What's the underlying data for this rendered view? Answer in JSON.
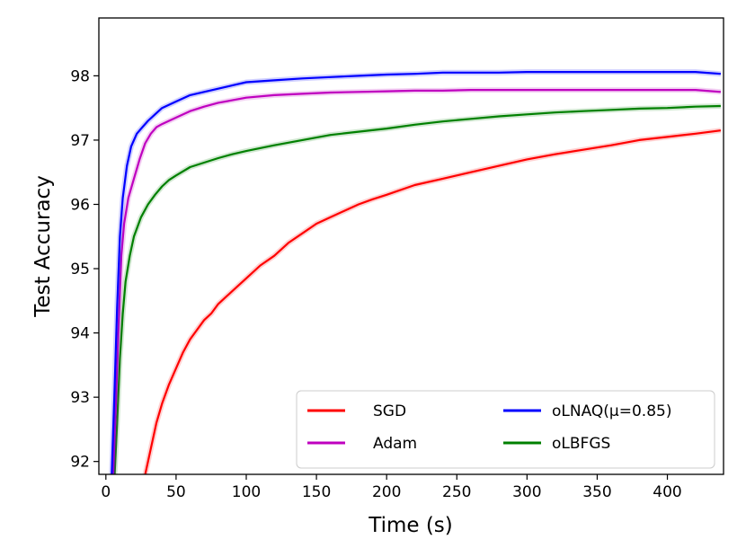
{
  "chart_data": {
    "type": "line",
    "xlabel": "Time (s)",
    "ylabel": "Test Accuracy",
    "xlim": [
      -5,
      440
    ],
    "ylim": [
      91.8,
      98.9
    ],
    "xticks": [
      0,
      50,
      100,
      150,
      200,
      250,
      300,
      350,
      400
    ],
    "yticks": [
      92,
      93,
      94,
      95,
      96,
      97,
      98
    ],
    "grid": false,
    "legend": {
      "placement": "lower-right",
      "columns": 2
    },
    "series": [
      {
        "name": "SGD",
        "color": "#ff0000",
        "x": [
          27,
          32,
          36,
          40,
          45,
          50,
          55,
          60,
          65,
          70,
          75,
          80,
          85,
          90,
          95,
          100,
          110,
          120,
          130,
          140,
          150,
          160,
          170,
          180,
          190,
          200,
          220,
          240,
          260,
          280,
          300,
          320,
          340,
          360,
          380,
          400,
          420,
          438
        ],
        "y": [
          91.7,
          92.2,
          92.6,
          92.9,
          93.2,
          93.45,
          93.7,
          93.9,
          94.05,
          94.2,
          94.3,
          94.45,
          94.55,
          94.65,
          94.75,
          94.85,
          95.05,
          95.2,
          95.4,
          95.55,
          95.7,
          95.8,
          95.9,
          96.0,
          96.08,
          96.15,
          96.3,
          96.4,
          96.5,
          96.6,
          96.7,
          96.78,
          96.85,
          96.92,
          97.0,
          97.05,
          97.1,
          97.15
        ]
      },
      {
        "name": "oLNAQ(μ=0.85)",
        "color": "#0000ff",
        "x": [
          4,
          6,
          8,
          10,
          12,
          15,
          18,
          22,
          26,
          30,
          35,
          40,
          45,
          50,
          60,
          70,
          80,
          90,
          100,
          120,
          140,
          160,
          180,
          200,
          220,
          240,
          260,
          280,
          300,
          320,
          340,
          360,
          380,
          400,
          420,
          438
        ],
        "y": [
          91.7,
          93.0,
          94.4,
          95.5,
          96.1,
          96.6,
          96.9,
          97.1,
          97.2,
          97.3,
          97.4,
          97.5,
          97.55,
          97.6,
          97.7,
          97.75,
          97.8,
          97.85,
          97.9,
          97.93,
          97.96,
          97.98,
          98.0,
          98.02,
          98.03,
          98.05,
          98.05,
          98.05,
          98.06,
          98.06,
          98.06,
          98.06,
          98.06,
          98.06,
          98.06,
          98.03
        ]
      },
      {
        "name": "Adam",
        "color": "#bf00bf",
        "x": [
          5,
          7,
          9,
          11,
          13,
          16,
          20,
          24,
          28,
          32,
          36,
          40,
          45,
          50,
          60,
          70,
          80,
          90,
          100,
          120,
          140,
          160,
          180,
          200,
          220,
          240,
          260,
          280,
          300,
          320,
          340,
          360,
          380,
          400,
          420,
          438
        ],
        "y": [
          91.7,
          92.8,
          94.1,
          95.2,
          95.7,
          96.1,
          96.4,
          96.7,
          96.95,
          97.1,
          97.2,
          97.25,
          97.3,
          97.35,
          97.45,
          97.52,
          97.58,
          97.62,
          97.66,
          97.7,
          97.72,
          97.74,
          97.75,
          97.76,
          97.77,
          97.77,
          97.78,
          97.78,
          97.78,
          97.78,
          97.78,
          97.78,
          97.78,
          97.78,
          97.78,
          97.75
        ]
      },
      {
        "name": "oLBFGS",
        "color": "#008000",
        "x": [
          6,
          8,
          10,
          12,
          14,
          17,
          20,
          25,
          30,
          35,
          40,
          45,
          50,
          60,
          70,
          80,
          90,
          100,
          120,
          140,
          160,
          180,
          200,
          220,
          240,
          260,
          280,
          300,
          320,
          340,
          360,
          380,
          400,
          420,
          438
        ],
        "y": [
          91.7,
          92.6,
          93.6,
          94.3,
          94.8,
          95.2,
          95.5,
          95.8,
          96.0,
          96.15,
          96.28,
          96.38,
          96.45,
          96.58,
          96.65,
          96.72,
          96.78,
          96.83,
          96.92,
          97.0,
          97.08,
          97.13,
          97.18,
          97.24,
          97.29,
          97.33,
          97.37,
          97.4,
          97.43,
          97.45,
          97.47,
          97.49,
          97.5,
          97.52,
          97.53
        ]
      }
    ]
  }
}
